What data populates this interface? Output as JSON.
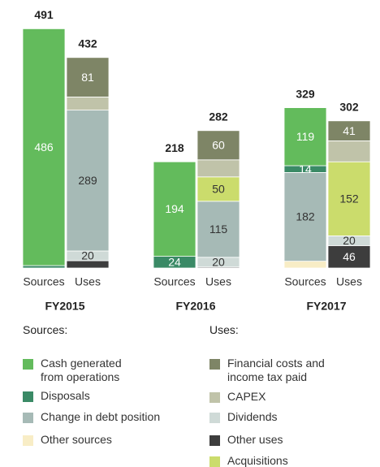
{
  "chart_data": {
    "type": "stacked_bar",
    "categories": [
      "Sources",
      "Uses",
      "Sources",
      "Uses",
      "Sources",
      "Uses"
    ],
    "groups": [
      "FY2015",
      "FY2016",
      "FY2017"
    ],
    "totals": [
      491,
      432,
      218,
      282,
      329,
      302
    ],
    "legend_titles": [
      "Sources:",
      "Uses:"
    ],
    "series": [
      {
        "name": "Cash generated from operations",
        "color": "#63bb5c",
        "values": [
          486,
          null,
          194,
          null,
          119,
          null
        ],
        "value_labels": [
          "486",
          null,
          "194",
          null,
          "119",
          null
        ]
      },
      {
        "name": "Disposals",
        "color": "#3a8a66",
        "values": [
          5,
          null,
          24,
          null,
          14,
          null
        ],
        "value_labels": [
          null,
          null,
          "24",
          null,
          "14",
          null
        ]
      },
      {
        "name": "Change in debt position",
        "color": "#a6bab6",
        "values": [
          null,
          289,
          null,
          115,
          182,
          null
        ],
        "value_labels": [
          null,
          "289",
          null,
          "115",
          "182",
          null
        ]
      },
      {
        "name": "Other sources",
        "color": "#f8edc6",
        "values": [
          null,
          null,
          null,
          null,
          14,
          null
        ],
        "value_labels": [
          null,
          null,
          null,
          null,
          null,
          null
        ]
      },
      {
        "name": "Financial costs and income tax paid",
        "color": "#7e8566",
        "values": [
          null,
          81,
          null,
          60,
          null,
          41
        ],
        "value_labels": [
          null,
          "81",
          null,
          "60",
          null,
          "41"
        ]
      },
      {
        "name": "CAPEX",
        "color": "#c0c3a9",
        "values": [
          null,
          27,
          null,
          35,
          null,
          43
        ],
        "value_labels": [
          null,
          null,
          null,
          null,
          null,
          null
        ]
      },
      {
        "name": "Dividends",
        "color": "#cfdad7",
        "values": [
          null,
          20,
          null,
          20,
          null,
          20
        ],
        "value_labels": [
          null,
          "20",
          null,
          "20",
          null,
          "20"
        ]
      },
      {
        "name": "Other uses",
        "color": "#3d3d3d",
        "values": [
          null,
          15,
          null,
          2,
          null,
          46
        ],
        "value_labels": [
          null,
          null,
          null,
          null,
          null,
          "46"
        ]
      },
      {
        "name": "Acquisitions",
        "color": "#cbdc6c",
        "values": [
          null,
          null,
          null,
          50,
          null,
          152
        ],
        "value_labels": [
          null,
          null,
          null,
          "50",
          null,
          "152"
        ]
      }
    ]
  }
}
